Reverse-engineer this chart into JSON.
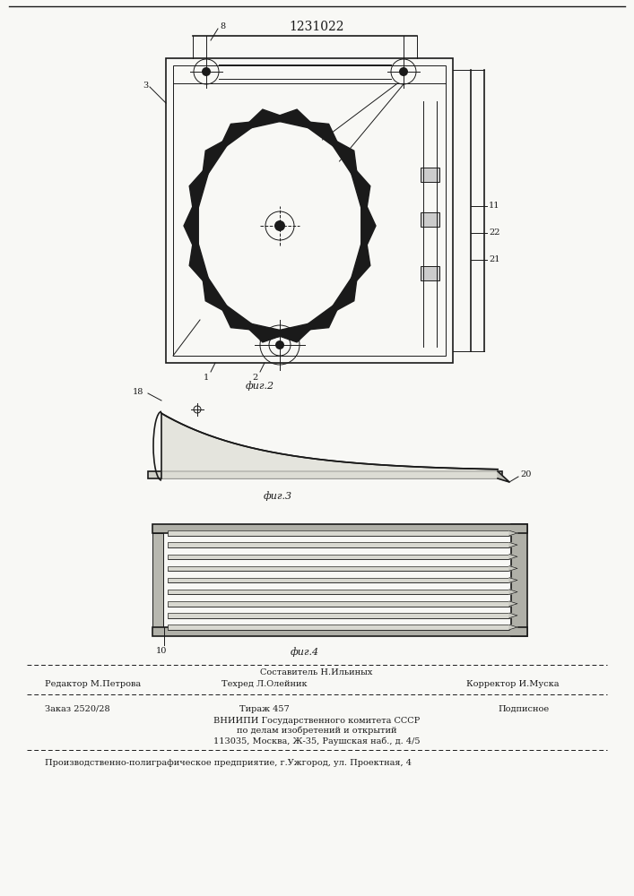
{
  "patent_number": "1231022",
  "bg_color": "#f8f8f5",
  "line_color": "#1a1a1a",
  "fig1_caption": "фиг.2",
  "fig2_caption": "фиг.3",
  "fig3_caption": "фиг.4",
  "footer": {
    "line1_center_top": "Составитель Н.Ильиных",
    "line1_left": "Редактор М.Петрова",
    "line1_center_bot": "Техред Л.Олейник",
    "line1_right": "Корректор И.Муска",
    "line2_left": "Заказ 2520/28",
    "line2_center": "Тираж 457",
    "line2_right": "Подписное",
    "line3": "ВНИИПИ Государственного комитета СССР",
    "line4": "по делам изобретений и открытий",
    "line5": "113035, Москва, Ж-35, Раушская наб., д. 4/5",
    "line6": "Производственно-полиграфическое предприятие, г.Ужгород, ул. Проектная, 4"
  }
}
